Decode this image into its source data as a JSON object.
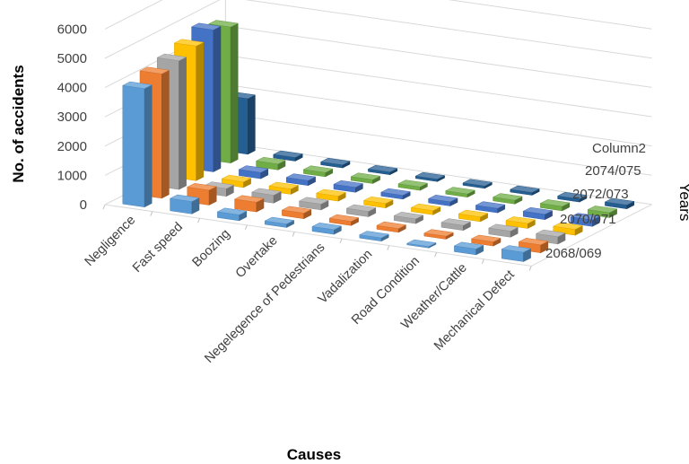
{
  "chart_data": {
    "type": "bar",
    "subtype": "3d-column",
    "xlabel": "Causes",
    "ylabel": "No. of accidents",
    "zlabel": "Years",
    "ylim": [
      0,
      6000
    ],
    "yticks": [
      "0",
      "1000",
      "2000",
      "3000",
      "4000",
      "5000",
      "6000"
    ],
    "grid": true,
    "categories": [
      "Negligence",
      "Fast speed",
      "Boozing",
      "Overtake",
      "Negelegence of Pedestrians",
      "Vadalization",
      "Road Condition",
      "Weather/Cattle",
      "Mechanical Defect"
    ],
    "series": [
      {
        "name": "2068/069",
        "color": "#5B9BD5",
        "values": [
          4050,
          420,
          200,
          120,
          160,
          110,
          50,
          200,
          320
        ]
      },
      {
        "name": "2070/071",
        "color": "#ED7D31",
        "values": [
          4250,
          510,
          330,
          190,
          140,
          130,
          100,
          140,
          270
        ]
      },
      {
        "name": "2072/073",
        "color": "#A5A5A5",
        "values": [
          4400,
          260,
          270,
          200,
          180,
          160,
          170,
          210,
          250
        ]
      },
      {
        "name": "2074/075",
        "color": "#FFC000",
        "values": [
          4600,
          190,
          180,
          170,
          150,
          140,
          160,
          170,
          200
        ]
      },
      {
        "name": "Column2",
        "color": "#4472C4",
        "values": [
          4850,
          210,
          170,
          170,
          130,
          140,
          150,
          180,
          220
        ]
      },
      {
        "name": "",
        "color": "#70AD47",
        "values": [
          4650,
          200,
          140,
          130,
          120,
          110,
          130,
          150,
          170
        ]
      },
      {
        "name": "",
        "color": "#255E91",
        "values": [
          1900,
          120,
          100,
          90,
          80,
          80,
          90,
          100,
          130
        ]
      }
    ],
    "legend": [
      "Column2",
      "2074/075",
      "2072/073",
      "2070/071",
      "2068/069"
    ]
  }
}
